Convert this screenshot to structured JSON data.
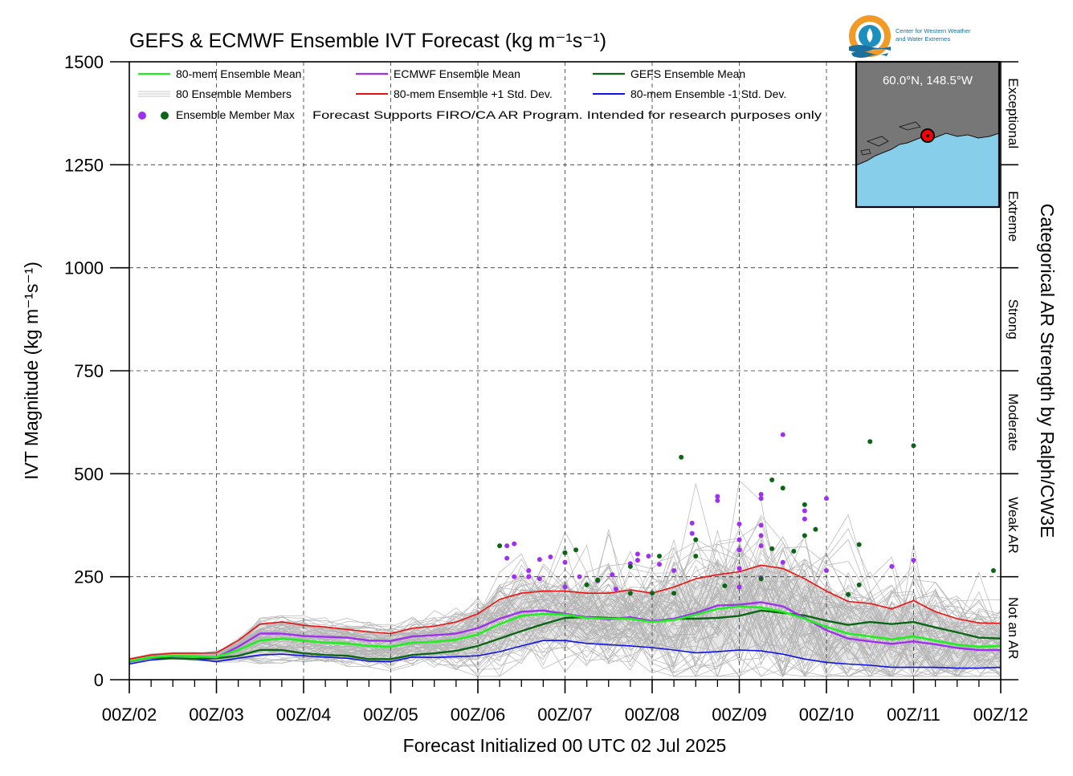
{
  "chart_data": {
    "type": "line",
    "title": "GEFS & ECMWF Ensemble IVT Forecast (kg m⁻¹s⁻¹)",
    "xlabel": "Forecast Initialized 00 UTC 02 Jul 2025",
    "ylabel": "IVT Magnitude (kg m⁻¹s⁻¹)",
    "right_label": "Categorical AR Strength by Ralph/CW3E",
    "xlim": [
      0,
      240
    ],
    "ylim": [
      0,
      1500
    ],
    "grid": true,
    "legend_position": "top-left",
    "x_ticks": [
      {
        "value": 0,
        "label": "00Z/02"
      },
      {
        "value": 24,
        "label": "00Z/03"
      },
      {
        "value": 48,
        "label": "00Z/04"
      },
      {
        "value": 72,
        "label": "00Z/05"
      },
      {
        "value": 96,
        "label": "00Z/06"
      },
      {
        "value": 120,
        "label": "00Z/07"
      },
      {
        "value": 144,
        "label": "00Z/08"
      },
      {
        "value": 168,
        "label": "00Z/09"
      },
      {
        "value": 192,
        "label": "00Z/10"
      },
      {
        "value": 216,
        "label": "00Z/11"
      },
      {
        "value": 240,
        "label": "00Z/12"
      }
    ],
    "y_ticks": [
      {
        "value": 0,
        "label": "0"
      },
      {
        "value": 250,
        "label": "250"
      },
      {
        "value": 500,
        "label": "500"
      },
      {
        "value": 750,
        "label": "750"
      },
      {
        "value": 1000,
        "label": "1000"
      },
      {
        "value": 1250,
        "label": "1250"
      },
      {
        "value": 1500,
        "label": "1500"
      }
    ],
    "categories_ar": [
      {
        "label": "Not an AR",
        "from": 0,
        "to": 250
      },
      {
        "label": "Weak AR",
        "from": 250,
        "to": 500
      },
      {
        "label": "Moderate",
        "from": 500,
        "to": 750
      },
      {
        "label": "Strong",
        "from": 750,
        "to": 1000
      },
      {
        "label": "Extreme",
        "from": 1000,
        "to": 1250
      },
      {
        "label": "Exceptional",
        "from": 1250,
        "to": 1500
      }
    ],
    "x": [
      0,
      6,
      12,
      18,
      24,
      30,
      36,
      42,
      48,
      54,
      60,
      66,
      72,
      78,
      84,
      90,
      96,
      102,
      108,
      114,
      120,
      126,
      132,
      138,
      144,
      150,
      156,
      162,
      168,
      174,
      180,
      186,
      192,
      198,
      204,
      210,
      216,
      222,
      228,
      234,
      240
    ],
    "series": [
      {
        "name": "80-mem Ensemble Mean",
        "color": "#22ee22",
        "width": 2.6,
        "values": [
          45,
          55,
          58,
          57,
          55,
          72,
          95,
          100,
          95,
          90,
          88,
          82,
          80,
          90,
          92,
          97,
          110,
          135,
          155,
          160,
          158,
          150,
          148,
          148,
          140,
          145,
          158,
          172,
          178,
          175,
          165,
          148,
          128,
          112,
          105,
          98,
          105,
          95,
          85,
          80,
          82
        ]
      },
      {
        "name": "ECMWF Ensemble Mean",
        "color": "#a030f0",
        "width": 2.4,
        "values": [
          44,
          55,
          57,
          56,
          54,
          80,
          112,
          112,
          106,
          104,
          102,
          95,
          94,
          105,
          108,
          112,
          125,
          148,
          165,
          168,
          160,
          152,
          146,
          152,
          142,
          148,
          162,
          180,
          182,
          188,
          178,
          150,
          120,
          100,
          93,
          87,
          93,
          86,
          77,
          72,
          72
        ]
      },
      {
        "name": "GEFS Ensemble Mean",
        "color": "#0a6614",
        "width": 2.4,
        "values": [
          44,
          54,
          52,
          50,
          52,
          58,
          72,
          72,
          64,
          60,
          58,
          50,
          50,
          60,
          64,
          70,
          82,
          100,
          118,
          135,
          150,
          152,
          150,
          148,
          140,
          148,
          148,
          150,
          155,
          168,
          162,
          156,
          143,
          133,
          140,
          135,
          140,
          127,
          115,
          102,
          100
        ]
      },
      {
        "name": "80-mem Ensemble +1 Std. Dev.",
        "color": "#ee1111",
        "width": 1.6,
        "values": [
          50,
          60,
          64,
          64,
          65,
          95,
          135,
          140,
          132,
          128,
          122,
          116,
          112,
          125,
          130,
          140,
          160,
          195,
          210,
          215,
          215,
          210,
          210,
          218,
          210,
          225,
          245,
          255,
          262,
          278,
          270,
          245,
          215,
          190,
          185,
          172,
          192,
          165,
          148,
          138,
          137
        ]
      },
      {
        "name": "80-mem Ensemble -1 Std. Dev.",
        "color": "#1111ee",
        "width": 1.6,
        "values": [
          38,
          48,
          52,
          50,
          44,
          52,
          60,
          62,
          58,
          55,
          52,
          45,
          44,
          55,
          54,
          56,
          58,
          68,
          82,
          95,
          95,
          88,
          85,
          82,
          78,
          72,
          65,
          68,
          72,
          70,
          62,
          50,
          42,
          38,
          35,
          30,
          30,
          30,
          28,
          28,
          30
        ]
      }
    ],
    "members_label": "80 Ensemble Members",
    "max_markers_label": "Ensemble Member Max",
    "ecmwf_max": [
      {
        "x": 104,
        "y": 295
      },
      {
        "x": 104,
        "y": 325
      },
      {
        "x": 106,
        "y": 330
      },
      {
        "x": 106,
        "y": 250
      },
      {
        "x": 110,
        "y": 250
      },
      {
        "x": 110,
        "y": 265
      },
      {
        "x": 113,
        "y": 245
      },
      {
        "x": 113,
        "y": 292
      },
      {
        "x": 116,
        "y": 298
      },
      {
        "x": 120,
        "y": 225
      },
      {
        "x": 120,
        "y": 285
      },
      {
        "x": 124,
        "y": 250
      },
      {
        "x": 129,
        "y": 240
      },
      {
        "x": 133,
        "y": 255
      },
      {
        "x": 138,
        "y": 282
      },
      {
        "x": 140,
        "y": 305
      },
      {
        "x": 140,
        "y": 290
      },
      {
        "x": 143,
        "y": 300
      },
      {
        "x": 146,
        "y": 280
      },
      {
        "x": 150,
        "y": 265
      },
      {
        "x": 155,
        "y": 380
      },
      {
        "x": 155,
        "y": 355
      },
      {
        "x": 162,
        "y": 445
      },
      {
        "x": 162,
        "y": 435
      },
      {
        "x": 168,
        "y": 340
      },
      {
        "x": 168,
        "y": 378
      },
      {
        "x": 168,
        "y": 315
      },
      {
        "x": 168,
        "y": 270
      },
      {
        "x": 168,
        "y": 225
      },
      {
        "x": 174,
        "y": 450
      },
      {
        "x": 174,
        "y": 440
      },
      {
        "x": 174,
        "y": 375
      },
      {
        "x": 174,
        "y": 350
      },
      {
        "x": 174,
        "y": 325
      },
      {
        "x": 180,
        "y": 595
      },
      {
        "x": 180,
        "y": 285
      },
      {
        "x": 186,
        "y": 410
      },
      {
        "x": 186,
        "y": 390
      },
      {
        "x": 192,
        "y": 440
      },
      {
        "x": 192,
        "y": 265
      },
      {
        "x": 210,
        "y": 275
      },
      {
        "x": 216,
        "y": 290
      },
      {
        "x": 174,
        "y": 248
      },
      {
        "x": 134,
        "y": 220
      }
    ],
    "gefs_max": [
      {
        "x": 102,
        "y": 325
      },
      {
        "x": 120,
        "y": 308
      },
      {
        "x": 123,
        "y": 315
      },
      {
        "x": 126,
        "y": 230
      },
      {
        "x": 129,
        "y": 242
      },
      {
        "x": 144,
        "y": 210
      },
      {
        "x": 146,
        "y": 300
      },
      {
        "x": 150,
        "y": 210
      },
      {
        "x": 138,
        "y": 275
      },
      {
        "x": 138,
        "y": 210
      },
      {
        "x": 152,
        "y": 540
      },
      {
        "x": 156,
        "y": 340
      },
      {
        "x": 156,
        "y": 300
      },
      {
        "x": 164,
        "y": 228
      },
      {
        "x": 174,
        "y": 245
      },
      {
        "x": 177,
        "y": 485
      },
      {
        "x": 177,
        "y": 318
      },
      {
        "x": 180,
        "y": 465
      },
      {
        "x": 183,
        "y": 312
      },
      {
        "x": 186,
        "y": 425
      },
      {
        "x": 186,
        "y": 350
      },
      {
        "x": 189,
        "y": 365
      },
      {
        "x": 198,
        "y": 207
      },
      {
        "x": 201,
        "y": 328
      },
      {
        "x": 201,
        "y": 230
      },
      {
        "x": 204,
        "y": 578
      },
      {
        "x": 216,
        "y": 568
      },
      {
        "x": 238,
        "y": 265
      }
    ],
    "disclaimer": "Forecast Supports FIRO/CA AR Program. Intended for research purposes only",
    "logo_text": [
      "Center for Western Weather",
      "and Water Extremes"
    ],
    "inset_label": "60.0°N, 148.5°W",
    "colors": {
      "members": "#b4b4b4",
      "spread_fill": "#d4d4d4",
      "ecmwf_max": "#a030f0",
      "gefs_max": "#0a6614",
      "inset_land": "#777777",
      "inset_sea": "#87ceeb"
    }
  }
}
